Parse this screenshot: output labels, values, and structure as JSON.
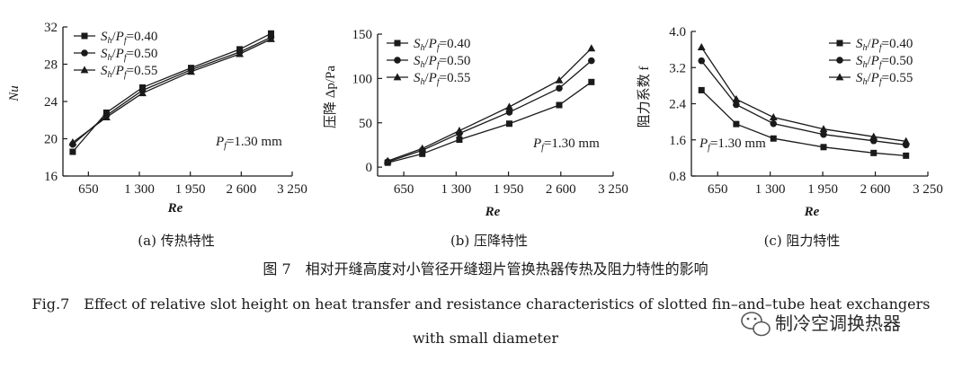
{
  "figure": {
    "caption_cn": "图 7　相对开缝高度对小管径开缝翅片管换热器传热及阻力特性的影响",
    "caption_en_line1": "Fig.7　Effect of relative slot height on heat transfer and resistance characteristics of slotted fin–and–tube heat exchangers",
    "caption_en_line2": "with small diameter"
  },
  "watermark": {
    "text": "制冷空调换热器",
    "icon": "wechat-icon"
  },
  "legend_labels": [
    "Sₕ/Pᶠ=0.40",
    "Sₕ/Pᶠ=0.50",
    "Sₕ/Pᶠ=0.55"
  ],
  "chart_data": [
    {
      "type": "line",
      "subcaption": "(a) 传热特性",
      "xlabel": "Re",
      "ylabel": "Nu",
      "annotation": "Pf=1.30 mm",
      "xlim": [
        325,
        3250
      ],
      "ylim": [
        16,
        32
      ],
      "xticks": [
        650,
        1300,
        1950,
        2600,
        3250
      ],
      "xtick_labels": [
        "650",
        "1 300",
        "1 950",
        "2 600",
        "3 250"
      ],
      "yticks": [
        16,
        20,
        24,
        28,
        32
      ],
      "ytick_labels": [
        "16",
        "20",
        "24",
        "28",
        "32"
      ],
      "legend_position": "top-left",
      "series": [
        {
          "name": "Sh/Pf=0.40",
          "marker": "square",
          "x": [
            450,
            880,
            1340,
            1960,
            2580,
            2980
          ],
          "y": [
            18.6,
            22.8,
            25.5,
            27.6,
            29.6,
            31.3
          ]
        },
        {
          "name": "Sh/Pf=0.50",
          "marker": "circle",
          "x": [
            450,
            880,
            1340,
            1960,
            2580,
            2980
          ],
          "y": [
            19.4,
            22.5,
            25.2,
            27.4,
            29.3,
            30.9
          ]
        },
        {
          "name": "Sh/Pf=0.55",
          "marker": "triangle",
          "x": [
            450,
            880,
            1340,
            1960,
            2580,
            2980
          ],
          "y": [
            19.6,
            22.3,
            24.9,
            27.2,
            29.1,
            30.7
          ]
        }
      ]
    },
    {
      "type": "line",
      "subcaption": "(b) 压降特性",
      "xlabel": "Re",
      "ylabel": "压降 Δp/Pa",
      "annotation": "Pf=1.30 mm",
      "xlim": [
        325,
        3250
      ],
      "ylim": [
        -10,
        150
      ],
      "xticks": [
        650,
        1300,
        1950,
        2600,
        3250
      ],
      "xtick_labels": [
        "650",
        "1 300",
        "1 950",
        "2 600",
        "3 250"
      ],
      "yticks": [
        0,
        50,
        100,
        150
      ],
      "ytick_labels": [
        "0",
        "50",
        "100",
        "150"
      ],
      "legend_position": "top-left",
      "series": [
        {
          "name": "Sh/Pf=0.40",
          "marker": "square",
          "x": [
            450,
            880,
            1340,
            1960,
            2580,
            2980
          ],
          "y": [
            5,
            15,
            31,
            49,
            70,
            96
          ]
        },
        {
          "name": "Sh/Pf=0.50",
          "marker": "circle",
          "x": [
            450,
            880,
            1340,
            1960,
            2580,
            2980
          ],
          "y": [
            6,
            19,
            38,
            62,
            89,
            120
          ]
        },
        {
          "name": "Sh/Pf=0.55",
          "marker": "triangle",
          "x": [
            450,
            880,
            1340,
            1960,
            2580,
            2980
          ],
          "y": [
            7,
            21,
            41,
            68,
            98,
            134
          ]
        }
      ]
    },
    {
      "type": "line",
      "subcaption": "(c) 阻力特性",
      "xlabel": "Re",
      "ylabel": "阻力系数 f",
      "annotation": "Pf=1.30 mm",
      "xlim": [
        325,
        3250
      ],
      "ylim": [
        0.8,
        4.0
      ],
      "xticks": [
        650,
        1300,
        1950,
        2600,
        3250
      ],
      "xtick_labels": [
        "650",
        "1 300",
        "1 950",
        "2 600",
        "3 250"
      ],
      "yticks": [
        0.8,
        1.6,
        2.4,
        3.2,
        4.0
      ],
      "ytick_labels": [
        "0.8",
        "1.6",
        "2.4",
        "3.2",
        "4.0"
      ],
      "legend_position": "top-right",
      "series": [
        {
          "name": "Sh/Pf=0.40",
          "marker": "square",
          "x": [
            450,
            880,
            1340,
            1960,
            2580,
            2980
          ],
          "y": [
            2.7,
            1.95,
            1.63,
            1.44,
            1.31,
            1.25
          ]
        },
        {
          "name": "Sh/Pf=0.50",
          "marker": "circle",
          "x": [
            450,
            880,
            1340,
            1960,
            2580,
            2980
          ],
          "y": [
            3.35,
            2.38,
            1.96,
            1.72,
            1.58,
            1.49
          ]
        },
        {
          "name": "Sh/Pf=0.55",
          "marker": "triangle",
          "x": [
            450,
            880,
            1340,
            1960,
            2580,
            2980
          ],
          "y": [
            3.65,
            2.5,
            2.1,
            1.84,
            1.67,
            1.57
          ]
        }
      ]
    }
  ]
}
